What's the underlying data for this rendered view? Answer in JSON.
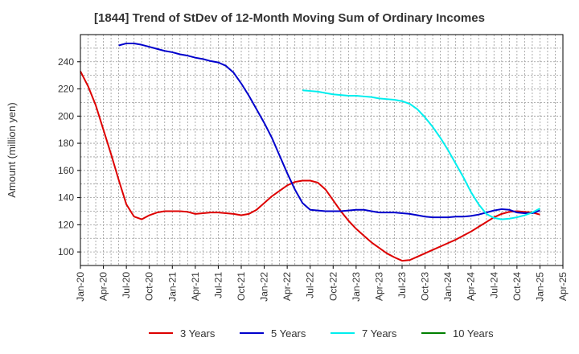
{
  "chart_data": {
    "type": "line",
    "title": "[1844]  Trend of StDev of 12-Month Moving Sum of Ordinary Incomes",
    "xlabel": "",
    "ylabel": "Amount (million yen)",
    "ylim": [
      90,
      260
    ],
    "yticks": [
      100,
      120,
      140,
      160,
      180,
      200,
      220,
      240
    ],
    "xticks": [
      "Jan-20",
      "Apr-20",
      "Jul-20",
      "Oct-20",
      "Jan-21",
      "Apr-21",
      "Jul-21",
      "Oct-21",
      "Jan-22",
      "Apr-22",
      "Jul-22",
      "Oct-22",
      "Jan-23",
      "Apr-23",
      "Jul-23",
      "Oct-23",
      "Jan-24",
      "Apr-24",
      "Jul-24",
      "Oct-24",
      "Jan-25",
      "Apr-25"
    ],
    "grid": true,
    "legend_position": "bottom",
    "series": [
      {
        "name": "3 Years",
        "color": "#dd0000",
        "points": [
          [
            "2020-01",
            233
          ],
          [
            "2020-02",
            222
          ],
          [
            "2020-03",
            208
          ],
          [
            "2020-04",
            190
          ],
          [
            "2020-05",
            172
          ],
          [
            "2020-06",
            153
          ],
          [
            "2020-07",
            135
          ],
          [
            "2020-08",
            126
          ],
          [
            "2020-09",
            124
          ],
          [
            "2020-10",
            127
          ],
          [
            "2020-11",
            129
          ],
          [
            "2020-12",
            130
          ],
          [
            "2021-01",
            130
          ],
          [
            "2021-02",
            130
          ],
          [
            "2021-03",
            129.5
          ],
          [
            "2021-04",
            128
          ],
          [
            "2021-05",
            128.5
          ],
          [
            "2021-06",
            129
          ],
          [
            "2021-07",
            129
          ],
          [
            "2021-08",
            128.5
          ],
          [
            "2021-09",
            128
          ],
          [
            "2021-10",
            127
          ],
          [
            "2021-11",
            128
          ],
          [
            "2021-12",
            131
          ],
          [
            "2022-01",
            136
          ],
          [
            "2022-02",
            141
          ],
          [
            "2022-03",
            145
          ],
          [
            "2022-04",
            149
          ],
          [
            "2022-05",
            151.5
          ],
          [
            "2022-06",
            152.5
          ],
          [
            "2022-07",
            152.5
          ],
          [
            "2022-08",
            151
          ],
          [
            "2022-09",
            146
          ],
          [
            "2022-10",
            138
          ],
          [
            "2022-11",
            130
          ],
          [
            "2022-12",
            123
          ],
          [
            "2023-01",
            117
          ],
          [
            "2023-02",
            112
          ],
          [
            "2023-03",
            107
          ],
          [
            "2023-04",
            103
          ],
          [
            "2023-05",
            99
          ],
          [
            "2023-06",
            96
          ],
          [
            "2023-07",
            93.5
          ],
          [
            "2023-08",
            94
          ],
          [
            "2023-09",
            96.5
          ],
          [
            "2023-10",
            99
          ],
          [
            "2023-11",
            101.5
          ],
          [
            "2023-12",
            104
          ],
          [
            "2024-01",
            106.5
          ],
          [
            "2024-02",
            109
          ],
          [
            "2024-03",
            112
          ],
          [
            "2024-04",
            115
          ],
          [
            "2024-05",
            118.5
          ],
          [
            "2024-06",
            122
          ],
          [
            "2024-07",
            125.5
          ],
          [
            "2024-08",
            128
          ],
          [
            "2024-09",
            129.5
          ],
          [
            "2024-10",
            130
          ],
          [
            "2024-11",
            129.5
          ],
          [
            "2024-12",
            129
          ],
          [
            "2025-01",
            127.5
          ]
        ]
      },
      {
        "name": "5 Years",
        "color": "#0000cc",
        "points": [
          [
            "2020-06",
            252
          ],
          [
            "2020-07",
            253.5
          ],
          [
            "2020-08",
            253.5
          ],
          [
            "2020-09",
            252.5
          ],
          [
            "2020-10",
            251
          ],
          [
            "2020-11",
            249.5
          ],
          [
            "2020-12",
            248
          ],
          [
            "2021-01",
            247
          ],
          [
            "2021-02",
            245.5
          ],
          [
            "2021-03",
            244.5
          ],
          [
            "2021-04",
            243
          ],
          [
            "2021-05",
            242
          ],
          [
            "2021-06",
            240.5
          ],
          [
            "2021-07",
            239.5
          ],
          [
            "2021-08",
            237
          ],
          [
            "2021-09",
            232
          ],
          [
            "2021-10",
            224
          ],
          [
            "2021-11",
            215
          ],
          [
            "2021-12",
            205
          ],
          [
            "2022-01",
            195
          ],
          [
            "2022-02",
            184
          ],
          [
            "2022-03",
            171
          ],
          [
            "2022-04",
            158
          ],
          [
            "2022-05",
            146
          ],
          [
            "2022-06",
            136
          ],
          [
            "2022-07",
            131
          ],
          [
            "2022-08",
            130.5
          ],
          [
            "2022-09",
            130
          ],
          [
            "2022-10",
            130
          ],
          [
            "2022-11",
            130
          ],
          [
            "2022-12",
            130.5
          ],
          [
            "2023-01",
            131
          ],
          [
            "2023-02",
            131
          ],
          [
            "2023-03",
            130
          ],
          [
            "2023-04",
            129
          ],
          [
            "2023-05",
            129
          ],
          [
            "2023-06",
            129
          ],
          [
            "2023-07",
            128.5
          ],
          [
            "2023-08",
            128
          ],
          [
            "2023-09",
            127
          ],
          [
            "2023-10",
            126
          ],
          [
            "2023-11",
            125.5
          ],
          [
            "2023-12",
            125.5
          ],
          [
            "2024-01",
            125.5
          ],
          [
            "2024-02",
            126
          ],
          [
            "2024-03",
            126
          ],
          [
            "2024-04",
            126.5
          ],
          [
            "2024-05",
            127.5
          ],
          [
            "2024-06",
            129
          ],
          [
            "2024-07",
            130.5
          ],
          [
            "2024-08",
            131.5
          ],
          [
            "2024-09",
            131
          ],
          [
            "2024-10",
            129
          ],
          [
            "2024-11",
            128.5
          ],
          [
            "2024-12",
            128.5
          ],
          [
            "2025-01",
            130.5
          ]
        ]
      },
      {
        "name": "7 Years",
        "color": "#00eeee",
        "points": [
          [
            "2022-06",
            219
          ],
          [
            "2022-07",
            218.5
          ],
          [
            "2022-08",
            218
          ],
          [
            "2022-09",
            217
          ],
          [
            "2022-10",
            216
          ],
          [
            "2022-11",
            215.5
          ],
          [
            "2022-12",
            215
          ],
          [
            "2023-01",
            215
          ],
          [
            "2023-02",
            214.5
          ],
          [
            "2023-03",
            214
          ],
          [
            "2023-04",
            213
          ],
          [
            "2023-05",
            212.5
          ],
          [
            "2023-06",
            212
          ],
          [
            "2023-07",
            211
          ],
          [
            "2023-08",
            209
          ],
          [
            "2023-09",
            205
          ],
          [
            "2023-10",
            199
          ],
          [
            "2023-11",
            192
          ],
          [
            "2023-12",
            184
          ],
          [
            "2024-01",
            175
          ],
          [
            "2024-02",
            165
          ],
          [
            "2024-03",
            155
          ],
          [
            "2024-04",
            144
          ],
          [
            "2024-05",
            135
          ],
          [
            "2024-06",
            128
          ],
          [
            "2024-07",
            125
          ],
          [
            "2024-08",
            124
          ],
          [
            "2024-09",
            124.5
          ],
          [
            "2024-10",
            125.5
          ],
          [
            "2024-11",
            127
          ],
          [
            "2024-12",
            129
          ],
          [
            "2025-01",
            132
          ]
        ]
      },
      {
        "name": "10 Years",
        "color": "#008000",
        "points": []
      }
    ]
  }
}
